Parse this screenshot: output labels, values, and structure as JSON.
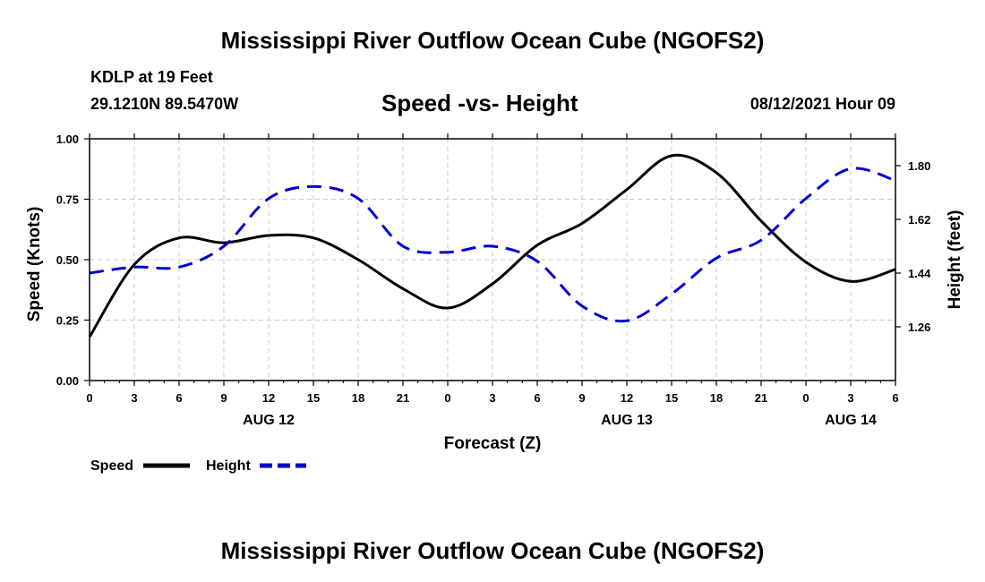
{
  "header": {
    "title_top": "Mississippi River Outflow Ocean Cube (NGOFS2)",
    "title_bottom": "Mississippi River Outflow Ocean Cube (NGOFS2)",
    "station": "KDLP at 19 Feet",
    "coords": "29.1210N  89.5470W",
    "subtitle": "Speed -vs- Height",
    "datetime": "08/12/2021 Hour 09"
  },
  "chart_data": {
    "type": "line",
    "xlabel": "Forecast (Z)",
    "ylabel_left": "Speed (Knots)",
    "ylabel_right": "Height (feet)",
    "x_range_hours": [
      0,
      54
    ],
    "x_tick_hours": [
      0,
      3,
      6,
      9,
      12,
      15,
      18,
      21,
      24,
      27,
      30,
      33,
      36,
      39,
      42,
      45,
      48,
      51,
      54
    ],
    "x_tick_labels": [
      "0",
      "3",
      "6",
      "9",
      "12",
      "15",
      "18",
      "21",
      "0",
      "3",
      "6",
      "9",
      "12",
      "15",
      "18",
      "21",
      "0",
      "3",
      "6"
    ],
    "day_labels": [
      {
        "hour": 12,
        "label": "AUG 12"
      },
      {
        "hour": 36,
        "label": "AUG 13"
      },
      {
        "hour": 51,
        "label": "AUG 14"
      }
    ],
    "ylim_left": [
      0,
      1.0
    ],
    "y_left_ticks": [
      0.0,
      0.25,
      0.5,
      0.75,
      1.0
    ],
    "y_left_tick_labels": [
      "0.00",
      "0.25",
      "0.50",
      "0.75",
      "1.00"
    ],
    "ylim_right": [
      1.08,
      1.89
    ],
    "y_right_ticks": [
      1.26,
      1.44,
      1.62,
      1.8
    ],
    "y_right_tick_labels": [
      "1.26",
      "1.44",
      "1.62",
      "1.80"
    ],
    "grid": true,
    "series": [
      {
        "name": "Speed",
        "axis": "left",
        "color": "#000000",
        "dash": "solid",
        "x": [
          0,
          3,
          6,
          9,
          12,
          15,
          18,
          21,
          24,
          27,
          30,
          33,
          36,
          39,
          42,
          45,
          48,
          51,
          54
        ],
        "values": [
          0.18,
          0.48,
          0.59,
          0.57,
          0.6,
          0.59,
          0.5,
          0.38,
          0.3,
          0.4,
          0.56,
          0.65,
          0.79,
          0.93,
          0.86,
          0.66,
          0.49,
          0.41,
          0.46
        ]
      },
      {
        "name": "Height",
        "axis": "right",
        "color": "#0000cc",
        "dash": "dashed",
        "x": [
          0,
          3,
          6,
          9,
          12,
          15,
          18,
          21,
          24,
          27,
          30,
          33,
          36,
          39,
          42,
          45,
          48,
          51,
          54
        ],
        "values": [
          1.44,
          1.46,
          1.46,
          1.53,
          1.69,
          1.73,
          1.69,
          1.53,
          1.51,
          1.53,
          1.48,
          1.33,
          1.28,
          1.37,
          1.49,
          1.55,
          1.69,
          1.79,
          1.75
        ]
      }
    ],
    "legend": [
      {
        "label": "Speed",
        "color": "#000000",
        "dash": "solid"
      },
      {
        "label": "Height",
        "color": "#0000cc",
        "dash": "dashed"
      }
    ]
  }
}
